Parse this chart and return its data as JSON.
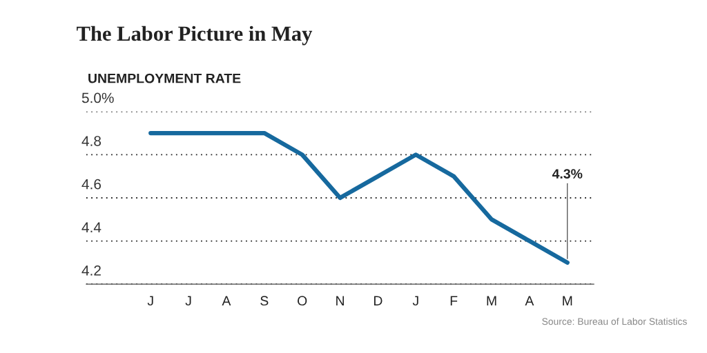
{
  "chart_data": {
    "type": "line",
    "title": "The Labor Picture in May",
    "ylabel": "UNEMPLOYMENT RATE",
    "categories": [
      "J",
      "J",
      "A",
      "S",
      "O",
      "N",
      "D",
      "J",
      "F",
      "M",
      "A",
      "M"
    ],
    "series": [
      {
        "color": "#16699e",
        "values": [
          4.9,
          4.9,
          4.9,
          4.9,
          4.8,
          4.6,
          4.7,
          4.8,
          4.7,
          4.5,
          4.4,
          4.3
        ],
        "value_labels": [
          null,
          null,
          null,
          null,
          null,
          null,
          null,
          null,
          null,
          null,
          null,
          "4.3%"
        ]
      }
    ],
    "ylim": [
      4.2,
      5.0
    ],
    "yticks": [
      4.2,
      4.4,
      4.6,
      4.8,
      {
        "value": 5.0,
        "label": "5.0%"
      }
    ],
    "grid": "y",
    "marker": "none",
    "line_style": "solid",
    "annotations": [
      "Source: Bureau of Labor Statistics"
    ]
  }
}
